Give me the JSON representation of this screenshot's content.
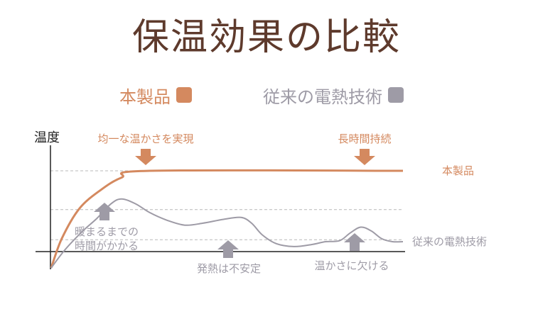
{
  "chart_data": {
    "type": "line",
    "title": "保温効果の比較",
    "ylabel": "温度",
    "series": [
      {
        "name": "本製品",
        "color": "#d4895f",
        "points": [
          [
            0,
            0
          ],
          [
            3,
            30
          ],
          [
            8,
            61
          ],
          [
            14,
            80
          ],
          [
            20,
            93
          ],
          [
            28,
            100
          ],
          [
            100,
            100
          ]
        ]
      },
      {
        "name": "従来の電熱技術",
        "color": "#9e9ba6",
        "points": [
          [
            0,
            0
          ],
          [
            4,
            19
          ],
          [
            9,
            38
          ],
          [
            13,
            51
          ],
          [
            17,
            66
          ],
          [
            20,
            71
          ],
          [
            24,
            66
          ],
          [
            28,
            57
          ],
          [
            33,
            49
          ],
          [
            38,
            44
          ],
          [
            43,
            46
          ],
          [
            49,
            50
          ],
          [
            54,
            52
          ],
          [
            57,
            46
          ],
          [
            60,
            34
          ],
          [
            64,
            25
          ],
          [
            69,
            22
          ],
          [
            74,
            24
          ],
          [
            78,
            27
          ],
          [
            82,
            28
          ],
          [
            85,
            36
          ],
          [
            88,
            42
          ],
          [
            91,
            38
          ],
          [
            94,
            30
          ],
          [
            97,
            27
          ],
          [
            100,
            27
          ]
        ]
      }
    ],
    "reference_lines": [
      100,
      60,
      29
    ],
    "annotations": [
      {
        "text": "均一な温かさを実現",
        "arrow": "down"
      },
      {
        "text": "長時間持続",
        "arrow": "down"
      },
      {
        "text": "暖まるまでの\n時間がかかる",
        "arrow": "up"
      },
      {
        "text": "発熱は不安定",
        "arrow": "up"
      },
      {
        "text": "温かさに欠ける",
        "arrow": "up"
      }
    ]
  },
  "legend": {
    "item1": {
      "label": "本製品",
      "color": "#d4895f"
    },
    "item2": {
      "label": "従来の電熱技術",
      "color": "#9e9ba6"
    }
  },
  "series_labels": {
    "product": "本製品",
    "conventional": "従来の電熱技術"
  }
}
